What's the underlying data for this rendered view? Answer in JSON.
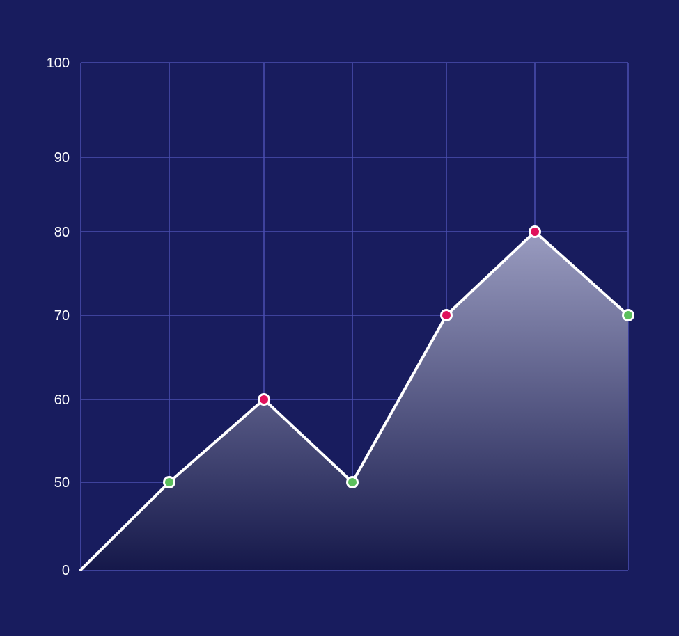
{
  "colors": {
    "background": "#181c5e",
    "grid": "#4a4fb0",
    "line": "#ffffff",
    "fill_top": "#9a9cc0",
    "fill_bottom": "#15184a",
    "point_high": "#e0125c",
    "point_low": "#5cbf5c"
  },
  "chart_data": {
    "type": "area",
    "title": "",
    "xlabel": "",
    "ylabel": "",
    "grid": true,
    "legend": "none",
    "yticks": [
      0,
      50,
      60,
      70,
      80,
      90,
      100
    ],
    "ylim": [
      0,
      100
    ],
    "x": [
      0,
      1,
      2,
      3,
      4,
      5,
      6
    ],
    "series": [
      {
        "values": [
          0,
          50,
          60,
          50,
          70,
          80,
          70
        ],
        "markers": [
          "none",
          "low",
          "high",
          "low",
          "high",
          "high",
          "low"
        ]
      }
    ]
  }
}
